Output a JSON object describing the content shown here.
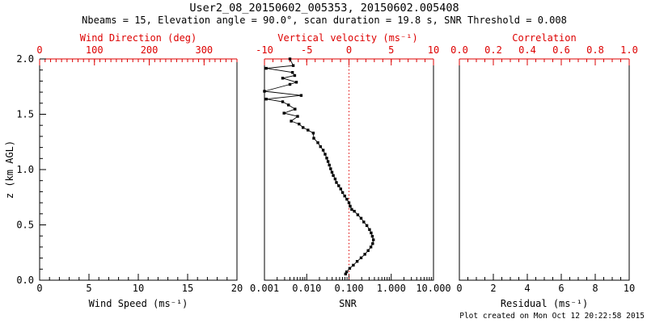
{
  "header": {
    "title": "User2_08_20150602_005353, 20150602.005408",
    "subtitle": "Nbeams = 15, Elevation angle = 90.0°, scan duration = 19.8 s, SNR Threshold = 0.008"
  },
  "footer": {
    "created": "Plot created on Mon Oct 12 20:22:58 2015"
  },
  "colors": {
    "background": "#ffffff",
    "axis": "#000000",
    "secondary_axis": "#dd0000",
    "data": "#000000",
    "reference_line": "#dd0000"
  },
  "chart_data": [
    {
      "id": "wind-speed-panel",
      "type": "line",
      "x_bottom": {
        "label": "Wind Speed (ms⁻¹)",
        "scale": "linear",
        "min": 0,
        "max": 20,
        "tick_values": [
          0,
          5,
          10,
          15,
          20
        ],
        "tick_labels": [
          "0",
          "5",
          "10",
          "15",
          "20"
        ],
        "minor_step": 1
      },
      "x_top": {
        "label": "Wind Direction (deg)",
        "scale": "linear",
        "min": 0,
        "max": 360,
        "tick_values": [
          0,
          100,
          200,
          300
        ],
        "tick_labels": [
          "0",
          "100",
          "200",
          "300"
        ],
        "minor_step": 10
      },
      "y_left": {
        "label": "z (km AGL)",
        "min": 0,
        "max": 2,
        "tick_values": [
          0,
          0.5,
          1,
          1.5,
          2
        ],
        "tick_labels": [
          "0.0",
          "0.5",
          "1.0",
          "1.5",
          "2.0"
        ],
        "minor_step": 0.1,
        "show_ticks": true,
        "show_labels": true
      },
      "series": []
    },
    {
      "id": "snr-panel",
      "type": "line",
      "x_bottom": {
        "label": "SNR",
        "scale": "log",
        "min": 0.001,
        "max": 10,
        "tick_values": [
          0.001,
          0.01,
          0.1,
          1,
          10
        ],
        "tick_labels": [
          "0.001",
          "0.010",
          "0.100",
          "1.000",
          "10.000"
        ]
      },
      "x_top": {
        "label": "Vertical velocity (ms⁻¹)",
        "scale": "linear",
        "min": -10,
        "max": 10,
        "tick_values": [
          -10,
          -5,
          0,
          5,
          10
        ],
        "tick_labels": [
          "-10",
          "-5",
          "0",
          "5",
          "10"
        ],
        "minor_step": 1
      },
      "y_left": {
        "min": 0,
        "max": 2,
        "show_ticks": false,
        "show_labels": false
      },
      "reference_line": {
        "axis": "top",
        "value": 0,
        "style": "dotted"
      },
      "series": [
        {
          "name": "snr-profile",
          "axis": "bottom",
          "marker": "square",
          "points": [
            [
              0.004,
              2.0
            ],
            [
              0.0048,
              1.94
            ],
            [
              0.0011,
              1.915
            ],
            [
              0.0046,
              1.878
            ],
            [
              0.0052,
              1.85
            ],
            [
              0.0027,
              1.826
            ],
            [
              0.0057,
              1.79
            ],
            [
              0.004,
              1.77
            ],
            [
              0.001,
              1.708
            ],
            [
              0.0074,
              1.67
            ],
            [
              0.0011,
              1.637
            ],
            [
              0.0027,
              1.613
            ],
            [
              0.0037,
              1.584
            ],
            [
              0.0053,
              1.547
            ],
            [
              0.0029,
              1.51
            ],
            [
              0.0061,
              1.481
            ],
            [
              0.0043,
              1.438
            ],
            [
              0.0066,
              1.412
            ],
            [
              0.0082,
              1.38
            ],
            [
              0.0107,
              1.357
            ],
            [
              0.0143,
              1.33
            ],
            [
              0.0147,
              1.283
            ],
            [
              0.0183,
              1.243
            ],
            [
              0.0212,
              1.207
            ],
            [
              0.0245,
              1.175
            ],
            [
              0.0272,
              1.139
            ],
            [
              0.0297,
              1.104
            ],
            [
              0.0319,
              1.073
            ],
            [
              0.0343,
              1.041
            ],
            [
              0.0368,
              1.007
            ],
            [
              0.0396,
              0.976
            ],
            [
              0.0426,
              0.947
            ],
            [
              0.0471,
              0.915
            ],
            [
              0.0505,
              0.883
            ],
            [
              0.0571,
              0.854
            ],
            [
              0.0637,
              0.825
            ],
            [
              0.0707,
              0.793
            ],
            [
              0.0793,
              0.761
            ],
            [
              0.0893,
              0.732
            ],
            [
              0.0998,
              0.7
            ],
            [
              0.107,
              0.669
            ],
            [
              0.116,
              0.64
            ],
            [
              0.134,
              0.623
            ],
            [
              0.162,
              0.591
            ],
            [
              0.194,
              0.56
            ],
            [
              0.224,
              0.526
            ],
            [
              0.265,
              0.494
            ],
            [
              0.306,
              0.458
            ],
            [
              0.335,
              0.428
            ],
            [
              0.358,
              0.397
            ],
            [
              0.379,
              0.365
            ],
            [
              0.363,
              0.331
            ],
            [
              0.33,
              0.3
            ],
            [
              0.284,
              0.268
            ],
            [
              0.237,
              0.234
            ],
            [
              0.194,
              0.202
            ],
            [
              0.156,
              0.17
            ],
            [
              0.127,
              0.136
            ],
            [
              0.104,
              0.107
            ],
            [
              0.088,
              0.075
            ],
            [
              0.083,
              0.056
            ]
          ]
        }
      ]
    },
    {
      "id": "residual-panel",
      "type": "line",
      "x_bottom": {
        "label": "Residual (ms⁻¹)",
        "scale": "linear",
        "min": 0,
        "max": 10,
        "tick_values": [
          0,
          2,
          4,
          6,
          8,
          10
        ],
        "tick_labels": [
          "0",
          "2",
          "4",
          "6",
          "8",
          "10"
        ],
        "minor_step": 0.5
      },
      "x_top": {
        "label": "Correlation",
        "scale": "linear",
        "min": 0,
        "max": 1,
        "tick_values": [
          0,
          0.2,
          0.4,
          0.6,
          0.8,
          1
        ],
        "tick_labels": [
          "0.0",
          "0.2",
          "0.4",
          "0.6",
          "0.8",
          "1.0"
        ],
        "minor_step": 0.05
      },
      "y_left": {
        "min": 0,
        "max": 2,
        "show_ticks": false,
        "show_labels": false
      },
      "series": []
    }
  ]
}
